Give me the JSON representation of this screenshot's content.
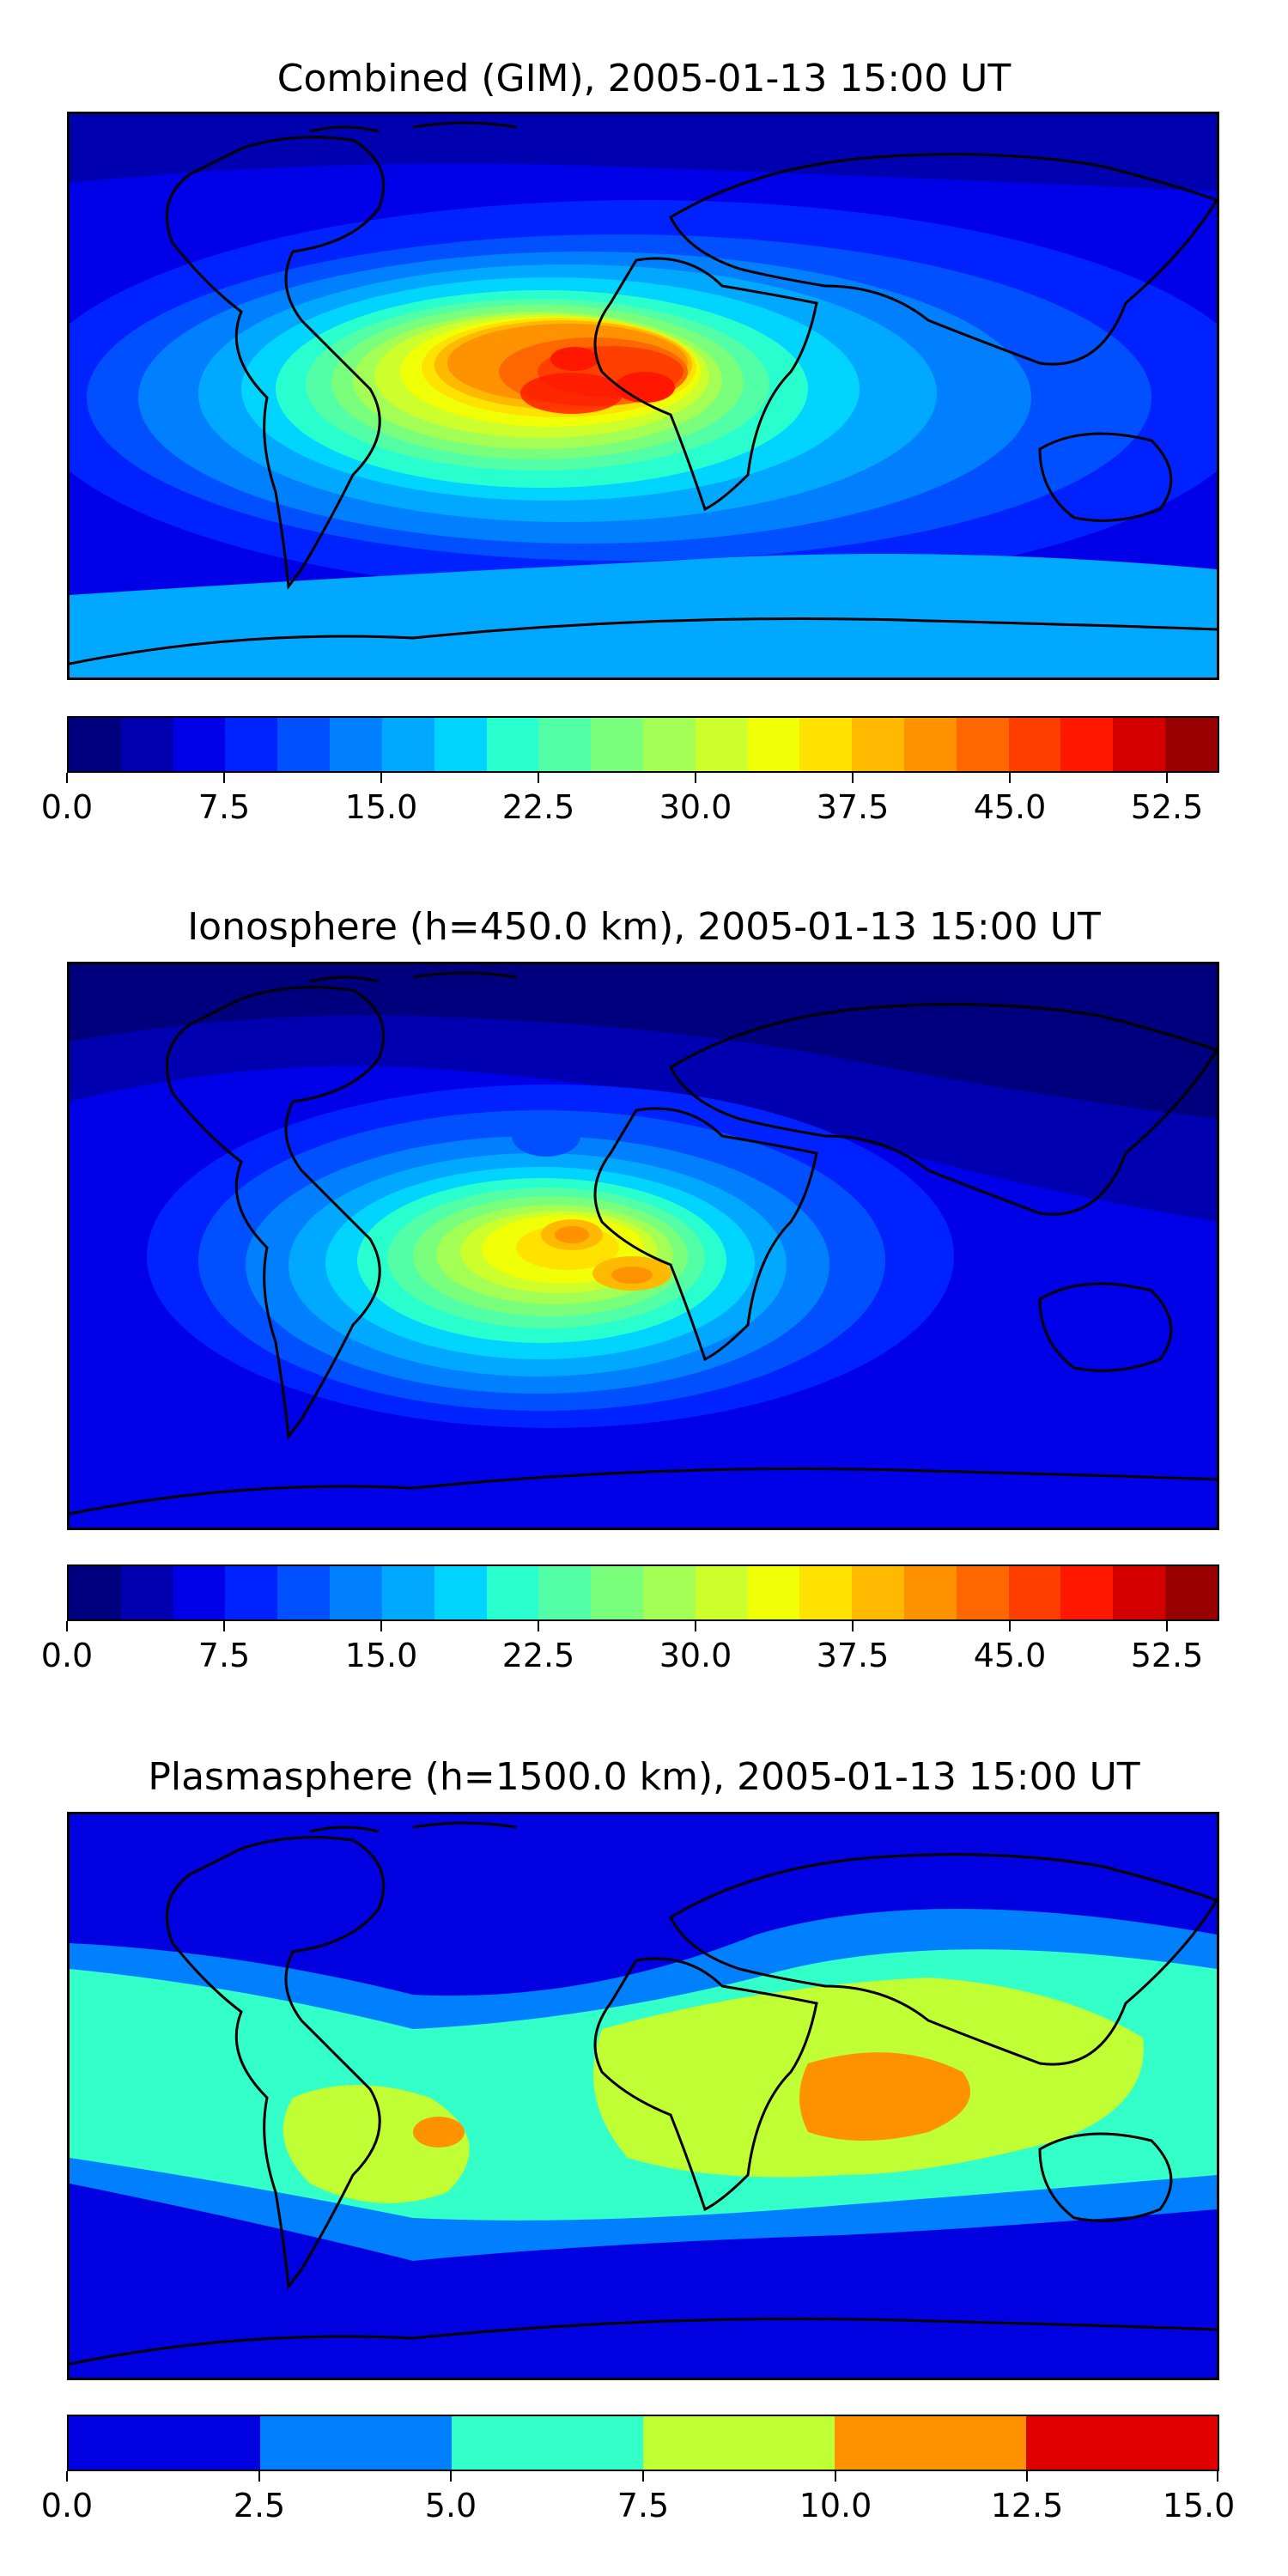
{
  "panels": [
    {
      "title": "Combined (GIM), 2005-01-13 15:00 UT",
      "colorbar": {
        "colors": [
          "#00007f",
          "#0000b0",
          "#0000e8",
          "#0022ff",
          "#0050ff",
          "#0080ff",
          "#00a8ff",
          "#00d4ff",
          "#29ffce",
          "#52ffa7",
          "#7aff7d",
          "#a3ff54",
          "#ccff2b",
          "#f0ff06",
          "#ffe200",
          "#ffb900",
          "#ff9200",
          "#ff6800",
          "#ff3f00",
          "#ff1700",
          "#d40000",
          "#990000"
        ],
        "tick_labels": [
          "0.0",
          "7.5",
          "15.0",
          "22.5",
          "30.0",
          "37.5",
          "45.0",
          "52.5"
        ]
      }
    },
    {
      "title": "Ionosphere  (h=450.0 km), 2005-01-13 15:00 UT",
      "colorbar": {
        "colors": [
          "#00007f",
          "#0000b0",
          "#0000e8",
          "#0022ff",
          "#0050ff",
          "#0080ff",
          "#00a8ff",
          "#00d4ff",
          "#29ffce",
          "#52ffa7",
          "#7aff7d",
          "#a3ff54",
          "#ccff2b",
          "#f0ff06",
          "#ffe200",
          "#ffb900",
          "#ff9200",
          "#ff6800",
          "#ff3f00",
          "#ff1700",
          "#d40000",
          "#990000"
        ],
        "tick_labels": [
          "0.0",
          "7.5",
          "15.0",
          "22.5",
          "30.0",
          "37.5",
          "45.0",
          "52.5"
        ]
      }
    },
    {
      "title": "Plasmasphere (h=1500.0 km), 2005-01-13 15:00 UT",
      "colorbar": {
        "colors": [
          "#0000e0",
          "#0080ff",
          "#33ffc8",
          "#c0ff33",
          "#ff9200",
          "#e00000"
        ],
        "tick_labels": [
          "0.0",
          "2.5",
          "5.0",
          "7.5",
          "10.0",
          "12.5",
          "15.0"
        ]
      }
    }
  ]
}
